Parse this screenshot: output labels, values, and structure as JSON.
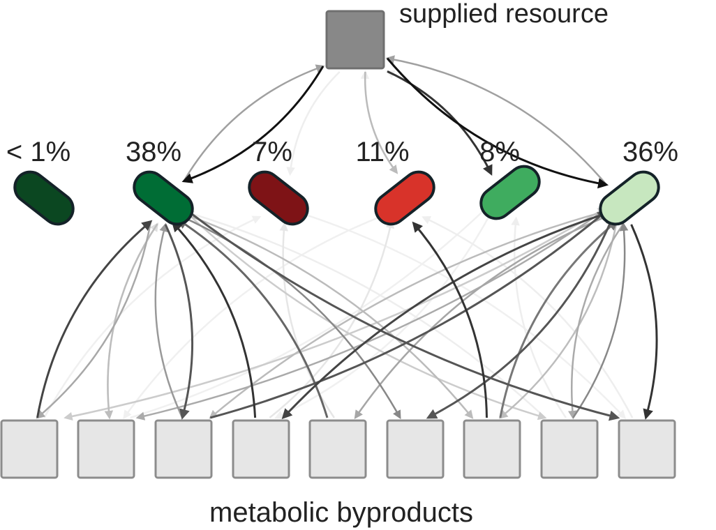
{
  "labels": {
    "supplied_resource": "supplied resource",
    "byproducts": "metabolic byproducts"
  },
  "resource_color": "#888888",
  "byproduct_color": "#e6e6e6",
  "species": [
    {
      "id": "s1",
      "abundance": "< 1%",
      "color": "#0b4721"
    },
    {
      "id": "s2",
      "abundance": "38%",
      "color": "#006d35"
    },
    {
      "id": "s3",
      "abundance": "7%",
      "color": "#7e1316"
    },
    {
      "id": "s4",
      "abundance": "11%",
      "color": "#d8332a"
    },
    {
      "id": "s5",
      "abundance": "8%",
      "color": "#3fac5f"
    },
    {
      "id": "s6",
      "abundance": "36%",
      "color": "#c7e7bf"
    }
  ],
  "byproducts": [
    {
      "id": "b1"
    },
    {
      "id": "b2"
    },
    {
      "id": "b3"
    },
    {
      "id": "b4"
    },
    {
      "id": "b5"
    },
    {
      "id": "b6"
    },
    {
      "id": "b7"
    },
    {
      "id": "b8"
    },
    {
      "id": "b9"
    }
  ],
  "edges": [
    {
      "from": "R",
      "to": "s2",
      "shade": "#111111"
    },
    {
      "from": "R",
      "to": "s6",
      "shade": "#111111"
    },
    {
      "from": "R",
      "to": "s5",
      "shade": "#333333"
    },
    {
      "from": "s2",
      "to": "R",
      "shade": "#a0a0a0"
    },
    {
      "from": "s6",
      "to": "R",
      "shade": "#a0a0a0"
    },
    {
      "from": "R",
      "to": "s4",
      "shade": "#bbbbbb"
    },
    {
      "from": "R",
      "to": "s3",
      "shade": "#eeeeee"
    },
    {
      "from": "s4",
      "to": "R",
      "shade": "#eeeeee"
    },
    {
      "from": "s5",
      "to": "R",
      "shade": "#f0f0f0"
    },
    {
      "from": "b1",
      "to": "s2",
      "shade": "#444444"
    },
    {
      "from": "s2",
      "to": "b1",
      "shade": "#a8a8a8"
    },
    {
      "from": "s2",
      "to": "b2",
      "shade": "#bdbdbd"
    },
    {
      "from": "s2",
      "to": "b3",
      "shade": "#555555"
    },
    {
      "from": "b3",
      "to": "s2",
      "shade": "#999999"
    },
    {
      "from": "b4",
      "to": "s2",
      "shade": "#333333"
    },
    {
      "from": "b5",
      "to": "s2",
      "shade": "#666666"
    },
    {
      "from": "s2",
      "to": "b6",
      "shade": "#888888"
    },
    {
      "from": "s2",
      "to": "b7",
      "shade": "#bbbbbb"
    },
    {
      "from": "s2",
      "to": "b8",
      "shade": "#cccccc"
    },
    {
      "from": "s2",
      "to": "b9",
      "shade": "#555555"
    },
    {
      "from": "b2",
      "to": "s2",
      "shade": "#dddddd"
    },
    {
      "from": "b6",
      "to": "s2",
      "shade": "#e4e4e4"
    },
    {
      "from": "b8",
      "to": "s2",
      "shade": "#eeeeee"
    },
    {
      "from": "b9",
      "to": "s2",
      "shade": "#eeeeee"
    },
    {
      "from": "s6",
      "to": "b1",
      "shade": "#cccccc"
    },
    {
      "from": "s6",
      "to": "b2",
      "shade": "#aaaaaa"
    },
    {
      "from": "s6",
      "to": "b3",
      "shade": "#bbbbbb"
    },
    {
      "from": "s6",
      "to": "b4",
      "shade": "#444444"
    },
    {
      "from": "s6",
      "to": "b5",
      "shade": "#a6a6a6"
    },
    {
      "from": "s6",
      "to": "b6",
      "shade": "#555555"
    },
    {
      "from": "s6",
      "to": "b7",
      "shade": "#bdbdbd"
    },
    {
      "from": "s6",
      "to": "b8",
      "shade": "#aaaaaa"
    },
    {
      "from": "s6",
      "to": "b9",
      "shade": "#333333"
    },
    {
      "from": "b1",
      "to": "s6",
      "shade": "#dddddd"
    },
    {
      "from": "b3",
      "to": "s6",
      "shade": "#555555"
    },
    {
      "from": "b5",
      "to": "s6",
      "shade": "#dddddd"
    },
    {
      "from": "b6",
      "to": "s6",
      "shade": "#999999"
    },
    {
      "from": "b7",
      "to": "s6",
      "shade": "#777777"
    },
    {
      "from": "b8",
      "to": "s6",
      "shade": "#888888"
    },
    {
      "from": "b7",
      "to": "s4",
      "shade": "#333333"
    },
    {
      "from": "b4",
      "to": "s4",
      "shade": "#e6e6e6"
    },
    {
      "from": "b9",
      "to": "s4",
      "shade": "#eeeeee"
    },
    {
      "from": "b5",
      "to": "s3",
      "shade": "#e6e6e6"
    },
    {
      "from": "b1",
      "to": "s3",
      "shade": "#f0f0f0"
    },
    {
      "from": "b8",
      "to": "s5",
      "shade": "#eeeeee"
    },
    {
      "from": "b2",
      "to": "s5",
      "shade": "#f0f0f0"
    },
    {
      "from": "s3",
      "to": "b9",
      "shade": "#f0f0f0"
    },
    {
      "from": "s4",
      "to": "b2",
      "shade": "#f0f0f0"
    },
    {
      "from": "s5",
      "to": "b4",
      "shade": "#f0f0f0"
    }
  ]
}
